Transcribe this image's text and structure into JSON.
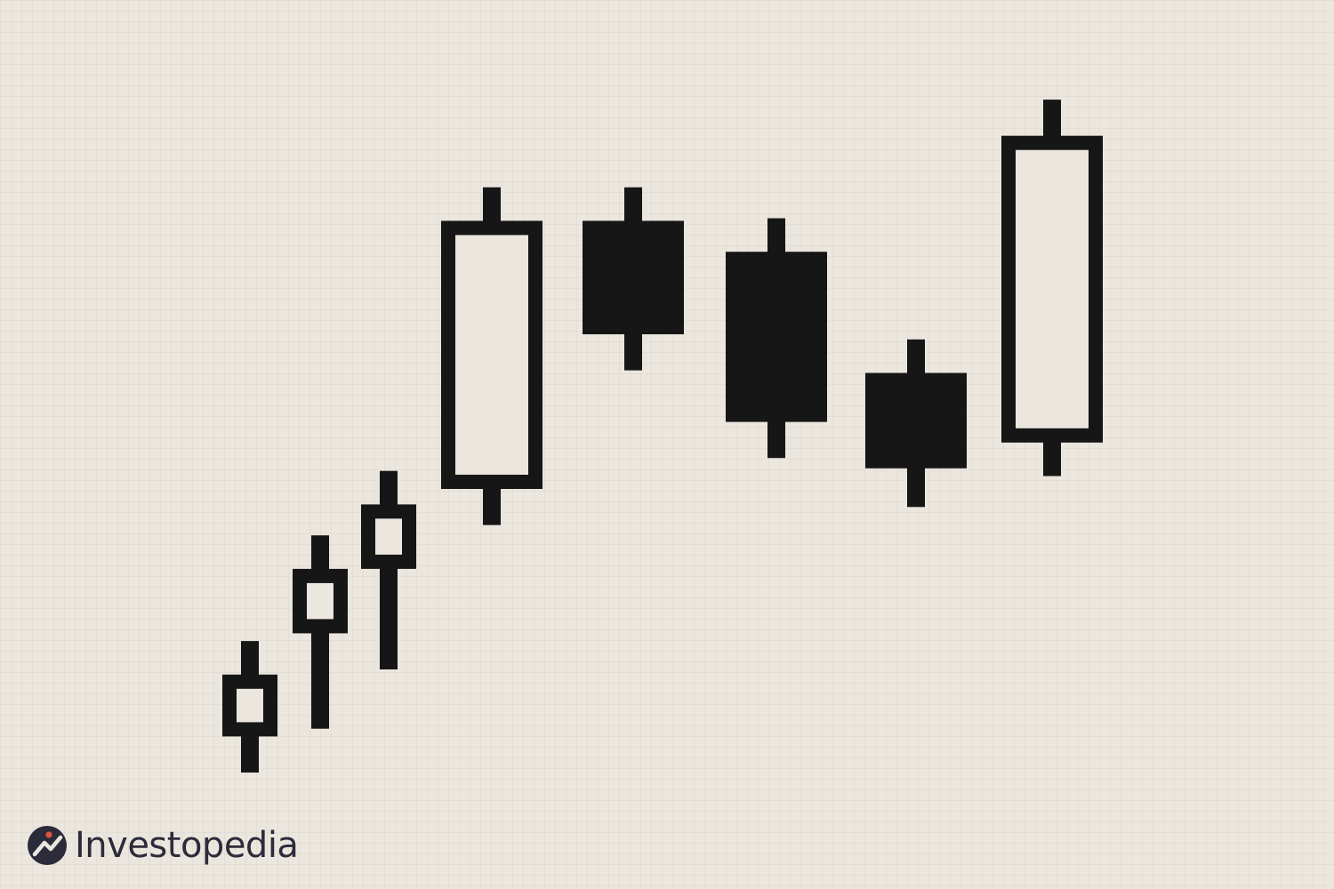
{
  "colors": {
    "background": "#ebe6de",
    "candle": "#161616",
    "bullish_fill": "#ebe6de",
    "logo_navy": "#2b2b3a",
    "logo_accent": "#e0533a"
  },
  "chart_data": {
    "type": "candlestick",
    "grid": true,
    "candles": [
      {
        "open": 14,
        "close": 38,
        "high": 51,
        "low": 0,
        "direction": "up"
      },
      {
        "open": 54,
        "close": 79,
        "high": 92,
        "low": 17,
        "direction": "up"
      },
      {
        "open": 79,
        "close": 104,
        "high": 117,
        "low": 40,
        "direction": "up"
      },
      {
        "open": 110,
        "close": 214,
        "high": 227,
        "low": 96,
        "direction": "up"
      },
      {
        "open": 214,
        "close": 170,
        "high": 227,
        "low": 156,
        "direction": "down"
      },
      {
        "open": 202,
        "close": 136,
        "high": 215,
        "low": 122,
        "direction": "down"
      },
      {
        "open": 155,
        "close": 118,
        "high": 168,
        "low": 103,
        "direction": "down"
      },
      {
        "open": 128,
        "close": 247,
        "high": 261,
        "low": 115,
        "direction": "up"
      }
    ]
  },
  "logo": {
    "icon": "investopedia-logo-icon",
    "text": "Investopedia"
  }
}
